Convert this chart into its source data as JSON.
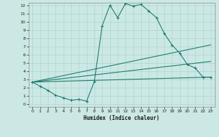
{
  "xlabel": "Humidex (Indice chaleur)",
  "bg_color": "#cce8e4",
  "grid_color": "#b0d8d4",
  "line_color": "#1a7a6e",
  "xlim": [
    -0.5,
    23.5
  ],
  "ylim": [
    -0.3,
    12.3
  ],
  "xticks": [
    0,
    1,
    2,
    3,
    4,
    5,
    6,
    7,
    8,
    9,
    10,
    11,
    12,
    13,
    14,
    15,
    16,
    17,
    18,
    19,
    20,
    21,
    22,
    23
  ],
  "yticks": [
    0,
    1,
    2,
    3,
    4,
    5,
    6,
    7,
    8,
    9,
    10,
    11,
    12
  ],
  "line1_x": [
    0,
    1,
    2,
    3,
    4,
    5,
    6,
    7,
    8,
    9,
    10,
    11,
    12,
    13,
    14,
    15,
    16,
    17,
    18,
    19,
    20,
    21,
    22,
    23
  ],
  "line1_y": [
    2.7,
    2.2,
    1.7,
    1.1,
    0.8,
    0.5,
    0.6,
    0.4,
    2.8,
    9.5,
    12.0,
    10.5,
    12.2,
    11.9,
    12.1,
    11.3,
    10.5,
    8.6,
    7.2,
    6.2,
    4.8,
    4.4,
    3.3,
    3.3
  ],
  "line2_x": [
    0,
    23
  ],
  "line2_y": [
    2.7,
    3.3
  ],
  "line3_x": [
    0,
    23
  ],
  "line3_y": [
    2.7,
    5.2
  ],
  "line4_x": [
    0,
    23
  ],
  "line4_y": [
    2.7,
    7.2
  ]
}
